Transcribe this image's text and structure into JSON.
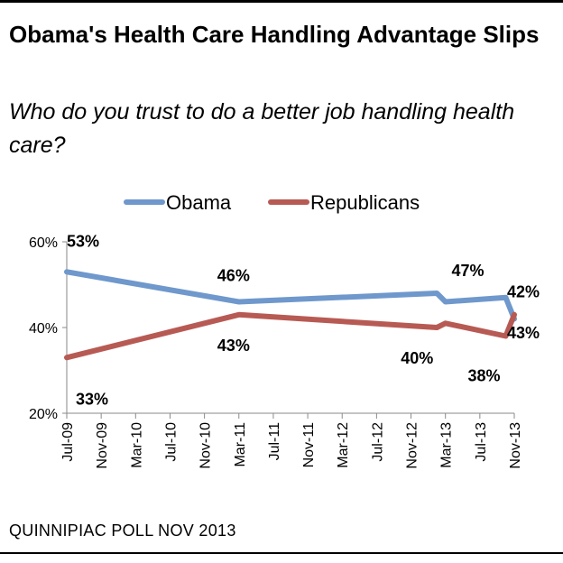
{
  "header": {
    "title": "Obama's Health Care Handling Advantage Slips",
    "subtitle": "Who do you trust to do a better job handling health care?"
  },
  "footer": {
    "source": "QUINNIPIAC POLL NOV 2013"
  },
  "colors": {
    "obama": "#6f98cc",
    "republicans": "#b85a54",
    "axis": "#8a8a8a"
  },
  "chart_data": {
    "type": "line",
    "title": "Obama's Health Care Handling Advantage Slips",
    "subtitle": "Who do you trust to do a better job handling health care?",
    "xlabel": "",
    "ylabel": "",
    "x_ticks": [
      "Jul-09",
      "Nov-09",
      "Mar-10",
      "Jul-10",
      "Nov-10",
      "Mar-11",
      "Jul-11",
      "Nov-11",
      "Mar-12",
      "Jul-12",
      "Nov-12",
      "Mar-13",
      "Jul-13",
      "Nov-13"
    ],
    "xlim": [
      "2009-07",
      "2013-11"
    ],
    "ylim": [
      20,
      60
    ],
    "y_ticks": [
      20,
      40,
      60
    ],
    "y_tick_labels": [
      "20%",
      "40%",
      "60%"
    ],
    "grid": false,
    "legend": "top-center",
    "series": [
      {
        "name": "Obama",
        "color": "#6f98cc",
        "points": [
          {
            "x": "2009-07",
            "y": 53,
            "label": "53%"
          },
          {
            "x": "2011-03",
            "y": 46,
            "label": "46%"
          },
          {
            "x": "2013-02",
            "y": 48
          },
          {
            "x": "2013-03",
            "y": 46
          },
          {
            "x": "2013-10",
            "y": 47,
            "label": "47%"
          },
          {
            "x": "2013-11",
            "y": 42,
            "label": "42%"
          }
        ]
      },
      {
        "name": "Republicans",
        "color": "#b85a54",
        "points": [
          {
            "x": "2009-07",
            "y": 33,
            "label": "33%"
          },
          {
            "x": "2011-03",
            "y": 43,
            "label": "43%"
          },
          {
            "x": "2013-02",
            "y": 40,
            "label": "40%"
          },
          {
            "x": "2013-03",
            "y": 41
          },
          {
            "x": "2013-10",
            "y": 38,
            "label": "38%"
          },
          {
            "x": "2013-11",
            "y": 43,
            "label": "43%"
          }
        ]
      }
    ]
  }
}
